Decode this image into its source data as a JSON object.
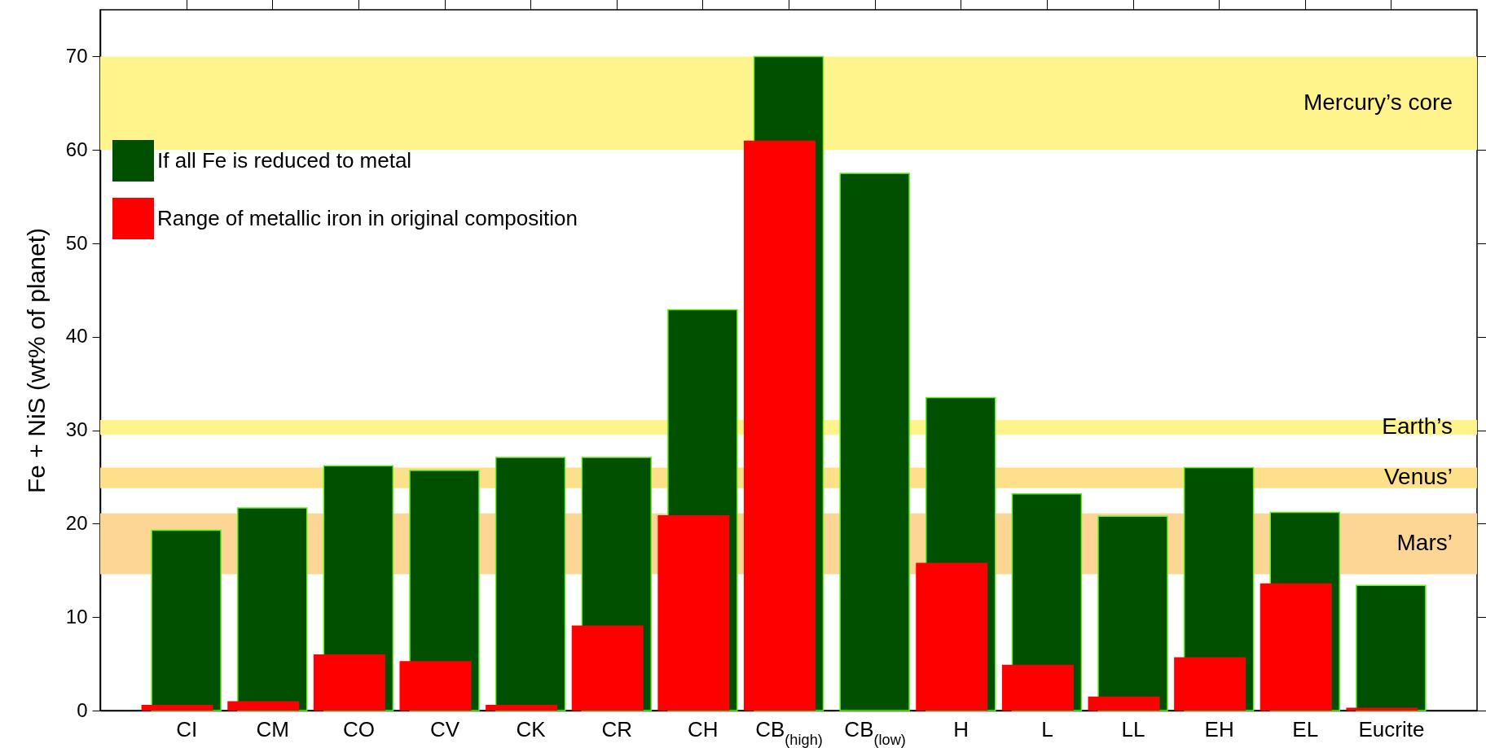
{
  "chart_data": {
    "type": "bar",
    "ylabel": "Fe + NiS (wt% of planet)",
    "categories": [
      "CI",
      "CM",
      "CO",
      "CV",
      "CK",
      "CR",
      "CH",
      "CB$_{(high)}$",
      "CB$_{(low)}$",
      "H",
      "L",
      "LL",
      "EH",
      "EL",
      "Eucrite"
    ],
    "series": [
      {
        "name": "If all Fe is reduced to metal",
        "color": "#005000",
        "values": [
          19.3,
          21.7,
          26.2,
          25.7,
          27.1,
          27.1,
          42.9,
          70,
          57.5,
          33.5,
          23.2,
          20.8,
          26,
          21.2,
          13.4
        ]
      },
      {
        "name": "Range of metallic iron in original composition",
        "color": "#ff0000",
        "values": [
          0.6,
          1,
          6,
          5.3,
          0.6,
          9.1,
          20.9,
          61,
          null,
          15.8,
          4.9,
          1.5,
          5.7,
          13.6,
          0.3
        ]
      }
    ],
    "ylim": [
      0,
      75
    ],
    "yticks": [
      0,
      10,
      20,
      30,
      40,
      50,
      60,
      70
    ],
    "bands": [
      {
        "axis": "y",
        "from": 60,
        "to": 70,
        "label": "Mercury’s core",
        "color": "#fff48c"
      },
      {
        "axis": "y",
        "from": 29.5,
        "to": 31.1,
        "label": "Earth’s",
        "color": "#fff48c"
      },
      {
        "axis": "y",
        "from": 23.8,
        "to": 26,
        "label": "Venus’",
        "color": "#fee08a"
      },
      {
        "axis": "y",
        "from": 14.6,
        "to": 21.1,
        "label": "Mars’",
        "color": "#fdd594"
      }
    ],
    "legend": "top left",
    "grid": false
  }
}
